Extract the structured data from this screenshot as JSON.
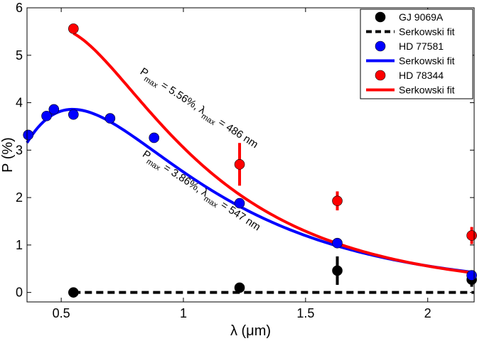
{
  "chart_data": {
    "type": "scatter",
    "xlabel": "λ (μm)",
    "ylabel": "P (%)",
    "xlim": [
      0.36,
      2.19
    ],
    "ylim": [
      -0.2,
      6
    ],
    "xticks": [
      0.5,
      1,
      1.5,
      2
    ],
    "xtick_labels": [
      "0.5",
      "1",
      "1.5",
      "2"
    ],
    "yticks": [
      0,
      1,
      2,
      3,
      4,
      5,
      6
    ],
    "ytick_labels": [
      "0",
      "1",
      "2",
      "3",
      "4",
      "5",
      "6"
    ],
    "grid": false,
    "legend_position": "top-right",
    "series": [
      {
        "name": "GJ 9069A",
        "kind": "points",
        "color": "#000000",
        "x": [
          0.55,
          1.23,
          1.63,
          2.18
        ],
        "y": [
          0.0,
          0.1,
          0.46,
          0.27
        ],
        "yerr": [
          0,
          0,
          0.3,
          0.15
        ]
      },
      {
        "name": "Serkowski fit",
        "kind": "fit",
        "style": "dashed",
        "color": "#000000",
        "x": [
          0.55,
          2.19
        ],
        "pmax": 0,
        "lmax": 0.55
      },
      {
        "name": "HD 77581",
        "kind": "points",
        "color": "#0000ff",
        "x": [
          0.365,
          0.44,
          0.47,
          0.55,
          0.7,
          0.88,
          1.23,
          1.63,
          2.18
        ],
        "y": [
          3.32,
          3.72,
          3.86,
          3.75,
          3.67,
          3.26,
          1.88,
          1.04,
          0.36
        ],
        "yerr": [
          0,
          0,
          0,
          0,
          0,
          0,
          0,
          0,
          0
        ]
      },
      {
        "name": "Serkowski fit",
        "kind": "fit",
        "style": "solid",
        "color": "#0000ff",
        "x": [
          0.36,
          2.19
        ],
        "pmax": 3.86,
        "lmax": 0.547
      },
      {
        "name": "HD 78344",
        "kind": "points",
        "color": "#ff0000",
        "x": [
          0.55,
          1.23,
          1.63,
          2.18
        ],
        "y": [
          5.56,
          2.7,
          1.93,
          1.2
        ],
        "yerr": [
          0,
          0.45,
          0.2,
          0.18
        ]
      },
      {
        "name": "Serkowski fit",
        "kind": "fit",
        "style": "solid",
        "color": "#ff0000",
        "x": [
          0.55,
          2.19
        ],
        "pmax": 5.56,
        "lmax": 0.486
      }
    ],
    "annotations": [
      {
        "main1": "P",
        "sub1": "max",
        "main2": " = 5.56%, λ",
        "sub2": "max",
        "main3": " = 486 nm",
        "x": 0.82,
        "y": 4.62,
        "angle": 33
      },
      {
        "main1": "P",
        "sub1": "max",
        "main2": " = 3.86%, λ",
        "sub2": "max",
        "main3": " = 547 nm",
        "x": 0.83,
        "y": 2.88,
        "angle": 33
      }
    ]
  }
}
